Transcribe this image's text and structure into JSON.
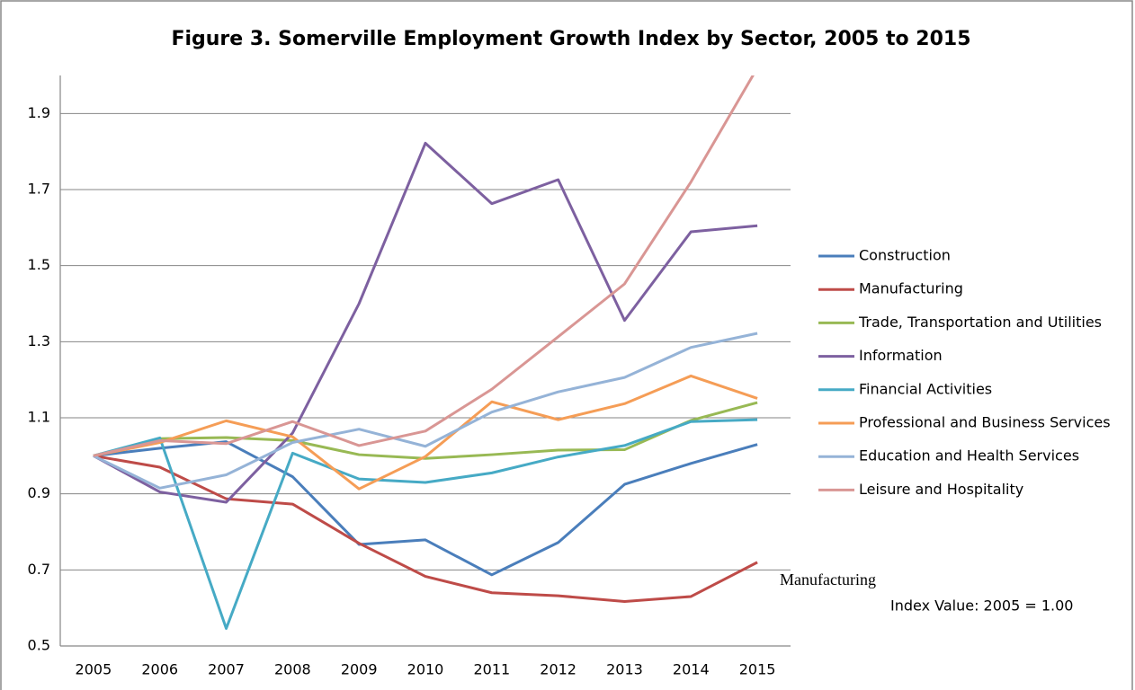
{
  "chart_data": {
    "type": "line",
    "title": "Figure 3. Somerville Employment Growth Index by Sector, 2005 to 2015",
    "annotations": [
      "Manufacturing",
      "Index Value: 2005 = 1.00"
    ],
    "categories": [
      "2005",
      "2006",
      "2007",
      "2008",
      "2009",
      "2010",
      "2011",
      "2012",
      "2013",
      "2014",
      "2015"
    ],
    "ylim": [
      0.5,
      2.0
    ],
    "yticks": [
      0.5,
      0.7,
      0.9,
      1.1,
      1.3,
      1.5,
      1.7,
      1.9
    ],
    "grid": true,
    "legend": "right",
    "series": [
      {
        "name": "Construction",
        "color": "#4a7ebb",
        "values": [
          1.0,
          1.02,
          1.037,
          0.945,
          0.767,
          0.779,
          0.687,
          0.772,
          0.925,
          0.98,
          1.03
        ]
      },
      {
        "name": "Manufacturing",
        "color": "#be4b48",
        "values": [
          1.0,
          0.97,
          0.887,
          0.873,
          0.77,
          0.683,
          0.64,
          0.632,
          0.617,
          0.63,
          0.72
        ]
      },
      {
        "name": "Trade, Transportation and Utilities",
        "color": "#98b954",
        "values": [
          1.0,
          1.045,
          1.048,
          1.04,
          1.003,
          0.993,
          1.003,
          1.015,
          1.016,
          1.093,
          1.14
        ]
      },
      {
        "name": "Information",
        "color": "#7d60a0",
        "values": [
          1.0,
          0.905,
          0.878,
          1.06,
          1.4,
          1.822,
          1.663,
          1.726,
          1.356,
          1.589,
          1.605
        ]
      },
      {
        "name": "Financial Activities",
        "color": "#46aac5",
        "values": [
          1.0,
          1.047,
          0.546,
          1.007,
          0.939,
          0.93,
          0.955,
          0.997,
          1.027,
          1.09,
          1.095
        ]
      },
      {
        "name": "Professional and Business Services",
        "color": "#f59d56",
        "values": [
          1.0,
          1.035,
          1.092,
          1.05,
          0.913,
          0.998,
          1.142,
          1.095,
          1.137,
          1.21,
          1.151
        ]
      },
      {
        "name": "Education and Health Services",
        "color": "#95b3d7",
        "values": [
          1.0,
          0.915,
          0.95,
          1.035,
          1.07,
          1.025,
          1.115,
          1.168,
          1.206,
          1.285,
          1.322
        ]
      },
      {
        "name": "Leisure and Hospitality",
        "color": "#d99694",
        "values": [
          1.0,
          1.04,
          1.032,
          1.09,
          1.027,
          1.065,
          1.175,
          1.313,
          1.452,
          1.72,
          2.02
        ]
      }
    ]
  }
}
